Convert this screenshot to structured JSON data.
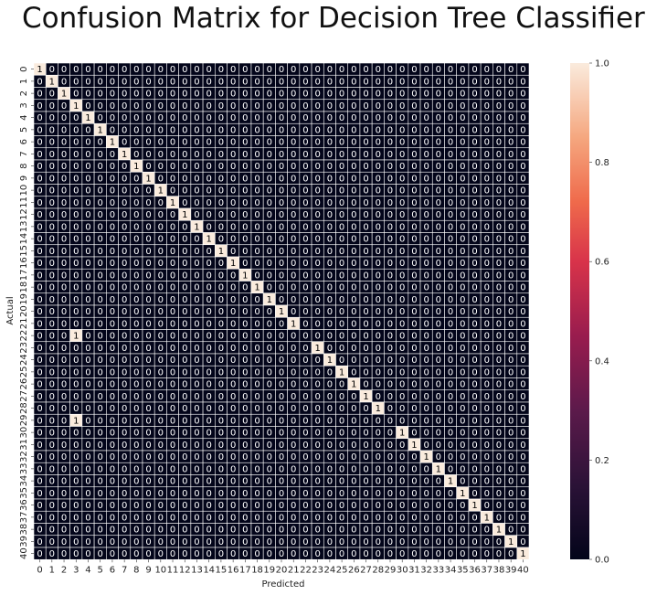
{
  "chart_data": {
    "type": "heatmap",
    "title": "Confusion Matrix for Decision Tree Classifier",
    "xlabel": "Predicted",
    "ylabel": "Actual",
    "x_tick_labels": [
      "0",
      "1",
      "2",
      "3",
      "4",
      "5",
      "6",
      "7",
      "8",
      "9",
      "10",
      "11",
      "12",
      "13",
      "14",
      "15",
      "16",
      "17",
      "18",
      "19",
      "20",
      "21",
      "22",
      "23",
      "24",
      "25",
      "26",
      "27",
      "28",
      "29",
      "30",
      "31",
      "32",
      "33",
      "34",
      "35",
      "36",
      "37",
      "38",
      "39",
      "40"
    ],
    "y_tick_labels": [
      "0",
      "1",
      "2",
      "3",
      "4",
      "5",
      "6",
      "7",
      "8",
      "9",
      "10",
      "11",
      "12",
      "13",
      "14",
      "15",
      "16",
      "17",
      "18",
      "19",
      "20",
      "21",
      "22",
      "23",
      "24",
      "25",
      "26",
      "27",
      "28",
      "29",
      "30",
      "31",
      "32",
      "33",
      "34",
      "35",
      "36",
      "37",
      "38",
      "39",
      "40"
    ],
    "n": 41,
    "diagonal_value": 1,
    "off_diagonal_default": 0,
    "exceptions": [
      {
        "row": 22,
        "col": 3,
        "value": 1
      },
      {
        "row": 29,
        "col": 3,
        "value": 1
      }
    ],
    "zero_diagonal": [
      22,
      29
    ],
    "colorbar": {
      "min": 0.0,
      "max": 1.0,
      "ticks": [
        "0.0",
        "0.2",
        "0.4",
        "0.6",
        "0.8",
        "1.0"
      ],
      "colormap": "rocket",
      "low_color": "#03051a",
      "high_color": "#faebdd"
    },
    "grid": false,
    "cell_border_color": "#ffffff"
  }
}
